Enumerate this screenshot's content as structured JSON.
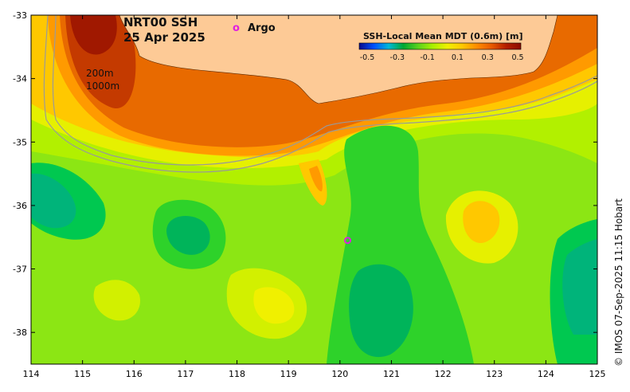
{
  "map": {
    "title_line1": "NRT00 SSH",
    "title_line2": "25 Apr 2025",
    "contour_label_200": "200m",
    "contour_label_1000": "1000m",
    "argo_symbol": "o",
    "argo_label": "Argo",
    "credit": "© IMOS 07-Sep-2025 11:15 Hobart",
    "lon_range": [
      114,
      125
    ],
    "lat_range": [
      -38.5,
      -33
    ],
    "lon_ticks": [
      "114",
      "115",
      "116",
      "117",
      "118",
      "119",
      "120",
      "121",
      "122",
      "123",
      "124",
      "125"
    ],
    "lat_ticks": [
      "-33",
      "-34",
      "-35",
      "-36",
      "-37",
      "-38"
    ],
    "argo_float": {
      "lon": 120.15,
      "lat": -36.55
    }
  },
  "colorbar": {
    "title": "SSH-Local Mean MDT (0.6m) [m]",
    "ticks": [
      "-0.5",
      "-0.3",
      "-0.1",
      "0.1",
      "0.3",
      "0.5"
    ],
    "stops": [
      "#0a0a8c",
      "#0050ff",
      "#00b8d8",
      "#00a832",
      "#5ad21e",
      "#aaf000",
      "#f0f000",
      "#ffc800",
      "#ff8c00",
      "#e85a00",
      "#b41e00",
      "#8c0a00"
    ]
  },
  "colors": {
    "land": "#fdca96",
    "ocean_base": "#8ce614",
    "argo_marker": "#e020e0"
  }
}
